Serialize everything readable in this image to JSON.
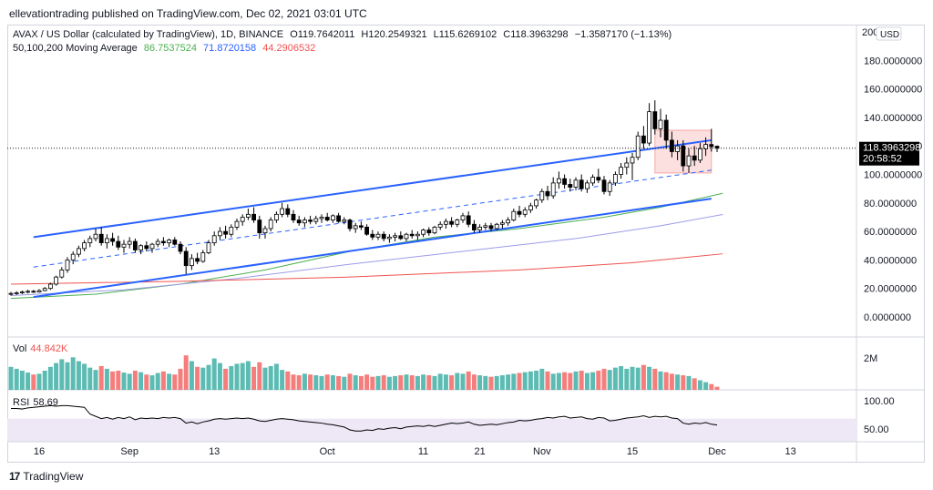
{
  "publish_line": "ellevationtrading published on TradingView.com, Dec 02, 2021 03:01 UTC",
  "footer_brand": "TradingView",
  "legend": {
    "symbol": "AVAX / US Dollar (calculated by TradingView), 1D, BINANCE",
    "o_label": "O",
    "o_val": "119.7642011",
    "h_label": "H",
    "h_val": "120.2549321",
    "l_label": "L",
    "l_val": "115.6269102",
    "c_label": "C",
    "c_val": "118.3963298",
    "change": "−1.3587170 (−1.13%)",
    "ma_label": "50,100,200 Moving Average",
    "ma50": "86.7537524",
    "ma100": "71.8720158",
    "ma200": "44.2906532"
  },
  "price_axis": {
    "currency_button": "USD",
    "labels": [
      "200",
      "180.0000000",
      "160.0000000",
      "140.0000000",
      "120.0000000",
      "100.0000000",
      "80.0000000",
      "60.0000000",
      "40.0000000",
      "20.0000000",
      "0.0000000"
    ],
    "last_price": "118.3963298",
    "countdown": "20:58:52"
  },
  "vol": {
    "label": "Vol",
    "value": "44.842K",
    "axis_label": "2M"
  },
  "rsi": {
    "label": "RSI",
    "value": "58.69",
    "axis_labels": [
      "100.00",
      "50.00"
    ]
  },
  "time_axis": [
    "16",
    "Sep",
    "13",
    "Oct",
    "11",
    "21",
    "Nov",
    "15",
    "Dec",
    "13"
  ],
  "colors": {
    "up": "#26a69a",
    "down": "#000000",
    "channel": "#2962ff",
    "ma50": "#4caf50",
    "ma100": "#9c9ce8",
    "ma200": "#ef5350",
    "vol_up": "#26a69a",
    "vol_down": "#ef5350",
    "rsi_line": "#000000",
    "rsi_band": "#ede7f6"
  },
  "chart_data": {
    "type": "candlestick",
    "title": "AVAX / US Dollar",
    "timeframe": "1D",
    "exchange": "BINANCE",
    "ylim": [
      0,
      200
    ],
    "candles": [
      {
        "o": 16.0,
        "h": 17.5,
        "l": 15.0,
        "c": 16.5
      },
      {
        "o": 16.5,
        "h": 18.0,
        "l": 15.5,
        "c": 17.0
      },
      {
        "o": 17.0,
        "h": 18.5,
        "l": 16.0,
        "c": 17.5
      },
      {
        "o": 17.5,
        "h": 19.0,
        "l": 16.5,
        "c": 18.0
      },
      {
        "o": 18.0,
        "h": 19.0,
        "l": 17.0,
        "c": 17.5
      },
      {
        "o": 17.5,
        "h": 19.5,
        "l": 17.0,
        "c": 18.5
      },
      {
        "o": 18.5,
        "h": 21.0,
        "l": 18.0,
        "c": 20.0
      },
      {
        "o": 20.0,
        "h": 24.0,
        "l": 19.0,
        "c": 23.0
      },
      {
        "o": 23.0,
        "h": 29.0,
        "l": 22.0,
        "c": 28.0
      },
      {
        "o": 28.0,
        "h": 35.0,
        "l": 27.0,
        "c": 33.0
      },
      {
        "o": 33.0,
        "h": 42.0,
        "l": 31.0,
        "c": 40.0
      },
      {
        "o": 40.0,
        "h": 46.0,
        "l": 37.0,
        "c": 44.0
      },
      {
        "o": 44.0,
        "h": 50.0,
        "l": 42.0,
        "c": 48.0
      },
      {
        "o": 48.0,
        "h": 54.0,
        "l": 46.0,
        "c": 52.0
      },
      {
        "o": 52.0,
        "h": 57.0,
        "l": 49.0,
        "c": 55.0
      },
      {
        "o": 55.0,
        "h": 62.0,
        "l": 53.0,
        "c": 58.0
      },
      {
        "o": 58.0,
        "h": 63.0,
        "l": 50.0,
        "c": 52.0
      },
      {
        "o": 52.0,
        "h": 58.0,
        "l": 48.0,
        "c": 55.0
      },
      {
        "o": 55.0,
        "h": 59.0,
        "l": 50.0,
        "c": 53.0
      },
      {
        "o": 53.0,
        "h": 57.0,
        "l": 47.0,
        "c": 49.0
      },
      {
        "o": 49.0,
        "h": 54.0,
        "l": 45.0,
        "c": 51.0
      },
      {
        "o": 51.0,
        "h": 56.0,
        "l": 48.0,
        "c": 53.0
      },
      {
        "o": 53.0,
        "h": 55.0,
        "l": 45.0,
        "c": 47.0
      },
      {
        "o": 47.0,
        "h": 51.0,
        "l": 44.0,
        "c": 50.0
      },
      {
        "o": 50.0,
        "h": 53.0,
        "l": 46.0,
        "c": 48.0
      },
      {
        "o": 48.0,
        "h": 52.0,
        "l": 45.0,
        "c": 51.0
      },
      {
        "o": 51.0,
        "h": 55.0,
        "l": 49.0,
        "c": 53.0
      },
      {
        "o": 53.0,
        "h": 56.0,
        "l": 50.0,
        "c": 52.0
      },
      {
        "o": 52.0,
        "h": 55.0,
        "l": 49.0,
        "c": 54.0
      },
      {
        "o": 54.0,
        "h": 56.0,
        "l": 50.0,
        "c": 51.0
      },
      {
        "o": 51.0,
        "h": 53.0,
        "l": 44.0,
        "c": 46.0
      },
      {
        "o": 46.0,
        "h": 49.0,
        "l": 30.0,
        "c": 36.0
      },
      {
        "o": 36.0,
        "h": 44.0,
        "l": 33.0,
        "c": 41.0
      },
      {
        "o": 41.0,
        "h": 45.0,
        "l": 37.0,
        "c": 39.0
      },
      {
        "o": 39.0,
        "h": 47.0,
        "l": 38.0,
        "c": 45.0
      },
      {
        "o": 45.0,
        "h": 54.0,
        "l": 44.0,
        "c": 52.0
      },
      {
        "o": 52.0,
        "h": 60.0,
        "l": 50.0,
        "c": 57.0
      },
      {
        "o": 57.0,
        "h": 63.0,
        "l": 54.0,
        "c": 60.0
      },
      {
        "o": 60.0,
        "h": 64.0,
        "l": 55.0,
        "c": 58.0
      },
      {
        "o": 58.0,
        "h": 65.0,
        "l": 56.0,
        "c": 63.0
      },
      {
        "o": 63.0,
        "h": 69.0,
        "l": 61.0,
        "c": 67.0
      },
      {
        "o": 67.0,
        "h": 72.0,
        "l": 64.0,
        "c": 70.0
      },
      {
        "o": 70.0,
        "h": 76.0,
        "l": 68.0,
        "c": 72.0
      },
      {
        "o": 72.0,
        "h": 77.0,
        "l": 66.0,
        "c": 68.0
      },
      {
        "o": 68.0,
        "h": 71.0,
        "l": 55.0,
        "c": 59.0
      },
      {
        "o": 59.0,
        "h": 64.0,
        "l": 55.0,
        "c": 62.0
      },
      {
        "o": 62.0,
        "h": 70.0,
        "l": 60.0,
        "c": 68.0
      },
      {
        "o": 68.0,
        "h": 74.0,
        "l": 66.0,
        "c": 72.0
      },
      {
        "o": 72.0,
        "h": 80.0,
        "l": 70.0,
        "c": 76.0
      },
      {
        "o": 76.0,
        "h": 79.0,
        "l": 70.0,
        "c": 72.0
      },
      {
        "o": 72.0,
        "h": 75.0,
        "l": 66.0,
        "c": 68.0
      },
      {
        "o": 68.0,
        "h": 71.0,
        "l": 64.0,
        "c": 66.0
      },
      {
        "o": 66.0,
        "h": 70.0,
        "l": 63.0,
        "c": 68.0
      },
      {
        "o": 68.0,
        "h": 71.0,
        "l": 65.0,
        "c": 67.0
      },
      {
        "o": 67.0,
        "h": 71.0,
        "l": 65.0,
        "c": 69.0
      },
      {
        "o": 69.0,
        "h": 72.0,
        "l": 66.0,
        "c": 70.0
      },
      {
        "o": 70.0,
        "h": 73.0,
        "l": 67.0,
        "c": 68.0
      },
      {
        "o": 68.0,
        "h": 72.0,
        "l": 66.0,
        "c": 71.0
      },
      {
        "o": 71.0,
        "h": 73.0,
        "l": 66.0,
        "c": 67.0
      },
      {
        "o": 67.0,
        "h": 70.0,
        "l": 65.0,
        "c": 68.0
      },
      {
        "o": 68.0,
        "h": 69.0,
        "l": 60.0,
        "c": 62.0
      },
      {
        "o": 62.0,
        "h": 66.0,
        "l": 59.0,
        "c": 64.0
      },
      {
        "o": 64.0,
        "h": 67.0,
        "l": 61.0,
        "c": 63.0
      },
      {
        "o": 63.0,
        "h": 65.0,
        "l": 57.0,
        "c": 58.0
      },
      {
        "o": 58.0,
        "h": 61.0,
        "l": 54.0,
        "c": 56.0
      },
      {
        "o": 56.0,
        "h": 60.0,
        "l": 54.0,
        "c": 58.0
      },
      {
        "o": 58.0,
        "h": 60.0,
        "l": 53.0,
        "c": 55.0
      },
      {
        "o": 55.0,
        "h": 58.0,
        "l": 52.0,
        "c": 56.0
      },
      {
        "o": 56.0,
        "h": 59.0,
        "l": 53.0,
        "c": 57.0
      },
      {
        "o": 57.0,
        "h": 60.0,
        "l": 54.0,
        "c": 55.0
      },
      {
        "o": 55.0,
        "h": 59.0,
        "l": 53.0,
        "c": 58.0
      },
      {
        "o": 58.0,
        "h": 61.0,
        "l": 55.0,
        "c": 57.0
      },
      {
        "o": 57.0,
        "h": 60.0,
        "l": 54.0,
        "c": 58.0
      },
      {
        "o": 58.0,
        "h": 62.0,
        "l": 56.0,
        "c": 61.0
      },
      {
        "o": 61.0,
        "h": 63.0,
        "l": 57.0,
        "c": 59.0
      },
      {
        "o": 59.0,
        "h": 64.0,
        "l": 58.0,
        "c": 63.0
      },
      {
        "o": 63.0,
        "h": 67.0,
        "l": 61.0,
        "c": 65.0
      },
      {
        "o": 65.0,
        "h": 69.0,
        "l": 62.0,
        "c": 67.0
      },
      {
        "o": 67.0,
        "h": 70.0,
        "l": 63.0,
        "c": 65.0
      },
      {
        "o": 65.0,
        "h": 69.0,
        "l": 63.0,
        "c": 68.0
      },
      {
        "o": 68.0,
        "h": 73.0,
        "l": 66.0,
        "c": 71.0
      },
      {
        "o": 71.0,
        "h": 74.0,
        "l": 63.0,
        "c": 65.0
      },
      {
        "o": 65.0,
        "h": 68.0,
        "l": 59.0,
        "c": 61.0
      },
      {
        "o": 61.0,
        "h": 65.0,
        "l": 59.0,
        "c": 63.0
      },
      {
        "o": 63.0,
        "h": 66.0,
        "l": 61.0,
        "c": 64.0
      },
      {
        "o": 64.0,
        "h": 66.0,
        "l": 60.0,
        "c": 62.0
      },
      {
        "o": 62.0,
        "h": 66.0,
        "l": 61.0,
        "c": 65.0
      },
      {
        "o": 65.0,
        "h": 68.0,
        "l": 62.0,
        "c": 66.0
      },
      {
        "o": 66.0,
        "h": 70.0,
        "l": 64.0,
        "c": 68.0
      },
      {
        "o": 68.0,
        "h": 76.0,
        "l": 67.0,
        "c": 74.0
      },
      {
        "o": 74.0,
        "h": 78.0,
        "l": 70.0,
        "c": 72.0
      },
      {
        "o": 72.0,
        "h": 77.0,
        "l": 70.0,
        "c": 75.0
      },
      {
        "o": 75.0,
        "h": 80.0,
        "l": 73.0,
        "c": 78.0
      },
      {
        "o": 78.0,
        "h": 83.0,
        "l": 76.0,
        "c": 82.0
      },
      {
        "o": 82.0,
        "h": 90.0,
        "l": 80.0,
        "c": 88.0
      },
      {
        "o": 88.0,
        "h": 92.0,
        "l": 82.0,
        "c": 85.0
      },
      {
        "o": 85.0,
        "h": 98.0,
        "l": 83.0,
        "c": 94.0
      },
      {
        "o": 94.0,
        "h": 102.0,
        "l": 90.0,
        "c": 97.0
      },
      {
        "o": 97.0,
        "h": 100.0,
        "l": 90.0,
        "c": 93.0
      },
      {
        "o": 93.0,
        "h": 97.0,
        "l": 88.0,
        "c": 91.0
      },
      {
        "o": 91.0,
        "h": 98.0,
        "l": 89.0,
        "c": 96.0
      },
      {
        "o": 96.0,
        "h": 100.0,
        "l": 88.0,
        "c": 90.0
      },
      {
        "o": 90.0,
        "h": 96.0,
        "l": 87.0,
        "c": 94.0
      },
      {
        "o": 94.0,
        "h": 100.0,
        "l": 92.0,
        "c": 98.0
      },
      {
        "o": 98.0,
        "h": 104.0,
        "l": 94.0,
        "c": 96.0
      },
      {
        "o": 96.0,
        "h": 99.0,
        "l": 86.0,
        "c": 88.0
      },
      {
        "o": 88.0,
        "h": 96.0,
        "l": 85.0,
        "c": 94.0
      },
      {
        "o": 94.0,
        "h": 102.0,
        "l": 92.0,
        "c": 100.0
      },
      {
        "o": 100.0,
        "h": 108.0,
        "l": 97.0,
        "c": 105.0
      },
      {
        "o": 105.0,
        "h": 112.0,
        "l": 100.0,
        "c": 108.0
      },
      {
        "o": 108.0,
        "h": 115.0,
        "l": 96.0,
        "c": 112.0
      },
      {
        "o": 112.0,
        "h": 130.0,
        "l": 110.0,
        "c": 127.0
      },
      {
        "o": 127.0,
        "h": 134.0,
        "l": 118.0,
        "c": 122.0
      },
      {
        "o": 122.0,
        "h": 150.0,
        "l": 120.0,
        "c": 144.0
      },
      {
        "o": 144.0,
        "h": 152.0,
        "l": 128.0,
        "c": 132.0
      },
      {
        "o": 132.0,
        "h": 146.0,
        "l": 126.0,
        "c": 138.0
      },
      {
        "o": 138.0,
        "h": 142.0,
        "l": 118.0,
        "c": 124.0
      },
      {
        "o": 124.0,
        "h": 130.0,
        "l": 112.0,
        "c": 116.0
      },
      {
        "o": 116.0,
        "h": 124.0,
        "l": 110.0,
        "c": 120.0
      },
      {
        "o": 120.0,
        "h": 124.0,
        "l": 102.0,
        "c": 106.0
      },
      {
        "o": 106.0,
        "h": 118.0,
        "l": 101.0,
        "c": 113.0
      },
      {
        "o": 113.0,
        "h": 120.0,
        "l": 106.0,
        "c": 110.0
      },
      {
        "o": 110.0,
        "h": 122.0,
        "l": 108.0,
        "c": 118.0
      },
      {
        "o": 118.0,
        "h": 126.0,
        "l": 113.0,
        "c": 121.0
      },
      {
        "o": 121.0,
        "h": 132.0,
        "l": 116.0,
        "c": 119.5
      },
      {
        "o": 119.7642011,
        "h": 120.2549321,
        "l": 115.6269102,
        "c": 118.3963298
      }
    ],
    "moving_averages": [
      {
        "name": "MA50",
        "color": "#4caf50",
        "x": [
          0,
          15,
          30,
          45,
          60,
          75,
          90,
          105,
          115,
          126
        ],
        "y": [
          13,
          16,
          23,
          33,
          46,
          56,
          62,
          70,
          77,
          86.75
        ]
      },
      {
        "name": "MA100",
        "color": "#9c9ce8",
        "x": [
          0,
          20,
          40,
          60,
          80,
          100,
          115,
          126
        ],
        "y": [
          15,
          19,
          27,
          37,
          46,
          55,
          64,
          71.87
        ]
      },
      {
        "name": "MA200",
        "color": "#ef5350",
        "x": [
          0,
          30,
          60,
          90,
          110,
          126
        ],
        "y": [
          23,
          25,
          28,
          33,
          38,
          44.29
        ]
      }
    ],
    "channel_upper": {
      "x1": 4,
      "y1": 56,
      "x2": 124,
      "y2": 124
    },
    "channel_lower": {
      "x1": 4,
      "y1": 14,
      "x2": 124,
      "y2": 83
    },
    "channel_mid": {
      "x1": 4,
      "y1": 35,
      "x2": 124,
      "y2": 103
    },
    "box_zone": {
      "x1": 114,
      "x2": 124,
      "y_low": 101,
      "y_high": 131
    },
    "volume": [
      60,
      55,
      50,
      45,
      40,
      42,
      50,
      60,
      70,
      80,
      72,
      85,
      75,
      68,
      58,
      52,
      62,
      55,
      48,
      50,
      45,
      42,
      50,
      46,
      40,
      38,
      44,
      48,
      42,
      40,
      55,
      90,
      75,
      60,
      58,
      65,
      82,
      70,
      55,
      62,
      68,
      70,
      75,
      60,
      72,
      58,
      62,
      68,
      52,
      48,
      40,
      38,
      42,
      40,
      38,
      36,
      40,
      38,
      36,
      34,
      42,
      38,
      36,
      40,
      34,
      36,
      38,
      34,
      36,
      38,
      40,
      38,
      36,
      40,
      38,
      36,
      42,
      40,
      38,
      44,
      42,
      48,
      40,
      38,
      36,
      34,
      36,
      38,
      40,
      42,
      44,
      46,
      48,
      50,
      55,
      48,
      42,
      44,
      46,
      44,
      48,
      50,
      44,
      46,
      50,
      55,
      52,
      58,
      62,
      55,
      60,
      58,
      65,
      60,
      55,
      48,
      46,
      42,
      40,
      38,
      36,
      30,
      25,
      20,
      15,
      8
    ],
    "rsi": [
      88,
      88,
      87,
      89,
      90,
      91,
      92,
      93,
      92,
      93,
      93,
      92,
      91,
      90,
      78,
      74,
      70,
      72,
      69,
      72,
      70,
      73,
      68,
      71,
      70,
      71,
      70,
      72,
      71,
      72,
      70,
      62,
      64,
      61,
      64,
      66,
      69,
      70,
      69,
      70,
      71,
      70,
      71,
      69,
      66,
      65,
      67,
      69,
      70,
      69,
      68,
      66,
      65,
      64,
      63,
      62,
      60,
      59,
      57,
      55,
      50,
      48,
      48,
      50,
      49,
      52,
      51,
      53,
      54,
      52,
      55,
      56,
      57,
      56,
      58,
      56,
      58,
      60,
      62,
      61,
      62,
      64,
      60,
      58,
      59,
      60,
      59,
      61,
      63,
      64,
      67,
      66,
      67,
      69,
      70,
      72,
      71,
      73,
      74,
      71,
      72,
      73,
      70,
      69,
      72,
      71,
      66,
      67,
      69,
      71,
      72,
      73,
      75,
      72,
      74,
      73,
      74,
      71,
      70,
      62,
      60,
      62,
      61,
      63,
      60,
      58.69
    ],
    "rsi_band": [
      30,
      70
    ],
    "x_ticks": [
      {
        "i": 5,
        "label": "16"
      },
      {
        "i": 21,
        "label": "Sep"
      },
      {
        "i": 36,
        "label": "13"
      },
      {
        "i": 56,
        "label": "Oct"
      },
      {
        "i": 73,
        "label": "11"
      },
      {
        "i": 83,
        "label": "21"
      },
      {
        "i": 94,
        "label": "Nov"
      },
      {
        "i": 110,
        "label": "15"
      },
      {
        "i": 125,
        "label": "Dec"
      },
      {
        "i": 138,
        "label": "13"
      }
    ]
  }
}
